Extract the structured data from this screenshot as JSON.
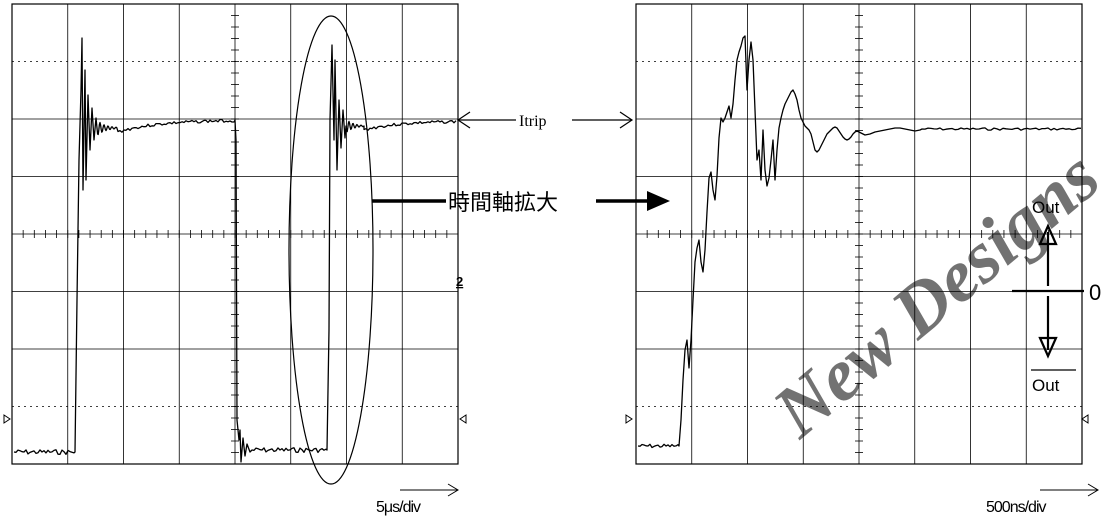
{
  "left_scope": {
    "timebase": "5μs/div",
    "channel_marker": "2"
  },
  "right_scope": {
    "timebase": "500ns/div"
  },
  "annotations": {
    "itrip": "Itrip",
    "zoom_label": "時間軸拡大",
    "out": "Out",
    "out_bar": "Out",
    "zero": "0"
  },
  "watermark": "New Designs",
  "colors": {
    "trace": "#000000",
    "grid": "#000000",
    "watermark": "#c8c8c8"
  }
}
